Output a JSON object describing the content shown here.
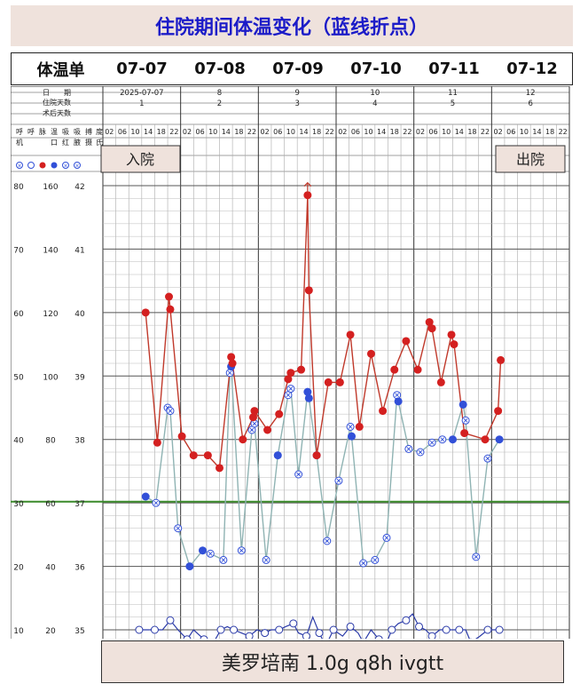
{
  "title": "住院期间体温变化（蓝线折点）",
  "header": {
    "label": "体温单",
    "dates": [
      "07-07",
      "07-08",
      "07-09",
      "07-10",
      "07-11",
      "07-12"
    ]
  },
  "table": {
    "row_labels": [
      "日　　期",
      "住院天数",
      "术后天数"
    ],
    "date_cells": [
      "2025-07-07",
      "8",
      "9",
      "10",
      "11",
      "12"
    ],
    "day_cells": [
      "1",
      "2",
      "3",
      "4",
      "5",
      "6"
    ],
    "hour_labels": [
      "02",
      "06",
      "10",
      "14",
      "18",
      "22"
    ],
    "side_headers": [
      "呼",
      "呼",
      "脉",
      "温",
      "吸",
      "吸",
      "搏",
      "度",
      "机",
      "",
      "",
      "口",
      "红",
      "腋",
      "摄",
      "氏"
    ]
  },
  "side_scale": {
    "rows": [
      [
        "80",
        "160",
        "42"
      ],
      [
        "70",
        "140",
        "41"
      ],
      [
        "60",
        "120",
        "40"
      ],
      [
        "50",
        "100",
        "39"
      ],
      [
        "40",
        "80",
        "38"
      ],
      [
        "30",
        "60",
        "37"
      ],
      [
        "20",
        "40",
        "36"
      ],
      [
        "10",
        "20",
        "35"
      ]
    ]
  },
  "annotations": {
    "admit": "入院",
    "discharge": "出院"
  },
  "footer_text": "美罗培南 1.0g q8h ivgtt",
  "colors": {
    "red_line": "#c0392b",
    "red_dot": "#d42020",
    "blue_line": "#2a3aa8",
    "blue_dot": "#3250d8",
    "gray_line": "#8fb3b3",
    "baseline": "#3a8a2a"
  },
  "chart_data": {
    "type": "line",
    "y_axes": {
      "temperature_C": [
        35,
        42
      ],
      "pulse": [
        20,
        160
      ],
      "respiration": [
        10,
        80
      ]
    },
    "x": [
      "07-07 10",
      "07-07 14",
      "07-07 18",
      "07-07 22",
      "07-08 02",
      "07-08 06",
      "07-08 10",
      "07-08 14",
      "07-08 18",
      "07-08 22",
      "07-09 02",
      "07-09 06",
      "07-09 10",
      "07-09 14",
      "07-09 18",
      "07-09 22",
      "07-10 02",
      "07-10 06",
      "07-10 10",
      "07-10 14",
      "07-10 18",
      "07-10 22",
      "07-11 02",
      "07-11 06",
      "07-11 10",
      "07-11 14",
      "07-11 18",
      "07-11 22",
      "07-12 02",
      "07-12 06",
      "07-12 10"
    ],
    "series": [
      {
        "key": "pulse",
        "marker": "red-filled",
        "points": [
          [
            0.8,
            120
          ],
          [
            1.7,
            79
          ],
          [
            2.6,
            125
          ],
          [
            2.7,
            121
          ],
          [
            3.6,
            81
          ],
          [
            4.5,
            75
          ],
          [
            5.6,
            75
          ],
          [
            6.5,
            71
          ],
          [
            7.4,
            106
          ],
          [
            7.5,
            104
          ],
          [
            8.3,
            80
          ],
          [
            9.1,
            87
          ],
          [
            9.2,
            89
          ],
          [
            10.2,
            83
          ],
          [
            11.1,
            88
          ],
          [
            11.8,
            99
          ],
          [
            12.0,
            101
          ],
          [
            12.8,
            102
          ],
          [
            13.3,
            157
          ],
          [
            13.4,
            127
          ],
          [
            14.0,
            75
          ],
          [
            14.9,
            98
          ],
          [
            15.8,
            98
          ],
          [
            16.6,
            113
          ],
          [
            17.3,
            84
          ],
          [
            18.2,
            107
          ],
          [
            19.1,
            89
          ],
          [
            20.0,
            102
          ],
          [
            20.9,
            111
          ],
          [
            21.8,
            102
          ],
          [
            22.7,
            117
          ],
          [
            22.9,
            115
          ],
          [
            23.6,
            98
          ],
          [
            24.4,
            113
          ],
          [
            24.6,
            110
          ],
          [
            25.4,
            82
          ],
          [
            27.0,
            80
          ],
          [
            28.0,
            89
          ],
          [
            28.2,
            105
          ]
        ]
      },
      {
        "key": "temperature",
        "marker": "blue-circles",
        "points": [
          [
            0.8,
            62
          ],
          [
            1.6,
            60
          ],
          [
            2.5,
            90
          ],
          [
            2.7,
            89
          ],
          [
            3.3,
            52
          ],
          [
            4.2,
            40
          ],
          [
            5.2,
            45
          ],
          [
            5.8,
            44
          ],
          [
            6.8,
            42
          ],
          [
            7.3,
            101
          ],
          [
            7.4,
            103
          ],
          [
            8.2,
            45
          ],
          [
            9.0,
            83
          ],
          [
            9.2,
            85
          ],
          [
            10.1,
            42
          ],
          [
            11.0,
            75
          ],
          [
            11.8,
            94
          ],
          [
            12.0,
            96
          ],
          [
            12.6,
            69
          ],
          [
            13.3,
            95
          ],
          [
            13.4,
            93
          ],
          [
            14.0,
            75
          ],
          [
            14.8,
            48
          ],
          [
            15.7,
            67
          ],
          [
            16.6,
            84
          ],
          [
            16.7,
            81
          ],
          [
            17.6,
            41
          ],
          [
            18.5,
            42
          ],
          [
            19.4,
            49
          ],
          [
            20.2,
            94
          ],
          [
            20.3,
            92
          ],
          [
            21.1,
            77
          ],
          [
            22.0,
            76
          ],
          [
            22.9,
            79
          ],
          [
            23.7,
            80
          ],
          [
            24.5,
            80
          ],
          [
            25.3,
            91
          ],
          [
            25.5,
            86
          ],
          [
            26.3,
            43
          ],
          [
            27.2,
            74
          ],
          [
            28.1,
            80
          ]
        ]
      },
      {
        "key": "respiration",
        "marker": "blue-line",
        "points": [
          [
            0.3,
            20
          ],
          [
            0.9,
            20
          ],
          [
            1.5,
            20
          ],
          [
            2.1,
            20
          ],
          [
            2.7,
            23
          ],
          [
            3.3,
            20
          ],
          [
            4.0,
            17
          ],
          [
            4.5,
            20
          ],
          [
            5.3,
            17
          ],
          [
            5.9,
            15
          ],
          [
            6.6,
            20
          ],
          [
            7.1,
            21
          ],
          [
            7.6,
            20
          ],
          [
            8.2,
            19
          ],
          [
            8.8,
            18
          ],
          [
            9.4,
            20
          ],
          [
            10.0,
            19
          ],
          [
            10.5,
            20
          ],
          [
            11.1,
            20
          ],
          [
            11.6,
            21
          ],
          [
            12.2,
            22
          ],
          [
            12.6,
            19
          ],
          [
            13.2,
            18
          ],
          [
            13.7,
            24
          ],
          [
            14.2,
            19
          ],
          [
            14.7,
            15
          ],
          [
            15.3,
            20
          ],
          [
            16.0,
            18
          ],
          [
            16.6,
            21
          ],
          [
            17.2,
            19
          ],
          [
            17.6,
            16
          ],
          [
            18.2,
            20
          ],
          [
            18.8,
            17
          ],
          [
            19.3,
            15
          ],
          [
            19.8,
            20
          ],
          [
            20.3,
            22
          ],
          [
            20.9,
            23
          ],
          [
            21.4,
            25
          ],
          [
            21.9,
            21
          ],
          [
            22.4,
            20
          ],
          [
            22.9,
            18
          ],
          [
            23.5,
            20
          ],
          [
            24.0,
            20
          ],
          [
            24.5,
            20
          ],
          [
            25.0,
            20
          ],
          [
            25.5,
            20
          ],
          [
            25.9,
            16
          ],
          [
            26.6,
            18
          ],
          [
            27.2,
            20
          ],
          [
            27.6,
            20
          ],
          [
            28.1,
            20
          ]
        ]
      }
    ]
  }
}
